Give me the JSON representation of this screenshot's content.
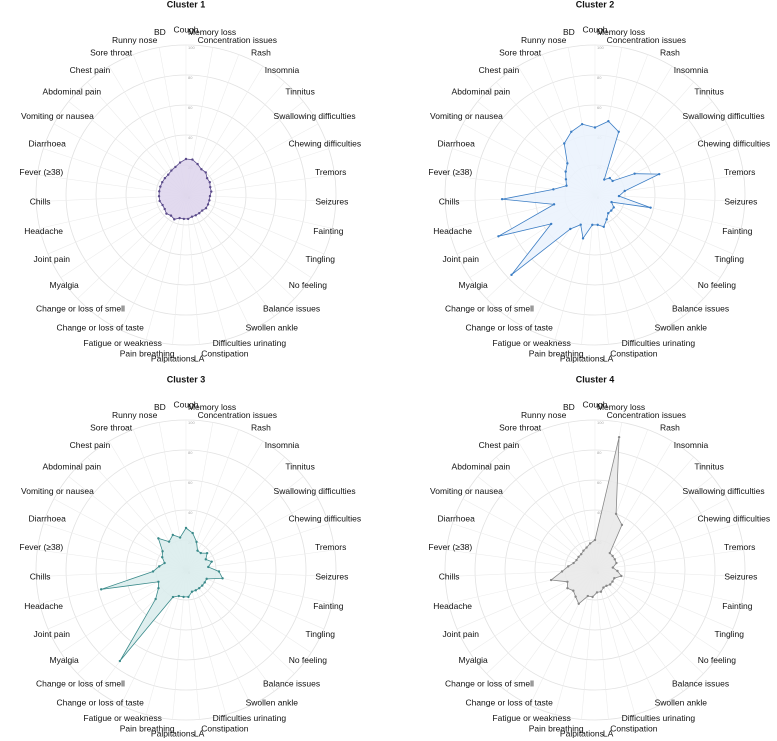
{
  "chart_data": [
    {
      "type": "radar",
      "title": "Cluster 1",
      "categories": [
        "Cough",
        "Memory loss",
        "Concentration issues",
        "Rash",
        "Insomnia",
        "Tinnitus",
        "Swallowing difficulties",
        "Chewing difficulties",
        "Tremors",
        "Seizures",
        "Fainting",
        "Tingling",
        "No feeling",
        "Balance issues",
        "Swollen ankle",
        "Difficulties urinating",
        "Constipation",
        "LA",
        "Palpitations",
        "Pain breathing",
        "Fatigue or weakness",
        "Change or loss of taste",
        "Change or loss of smell",
        "Myalgia",
        "Joint pain",
        "Headache",
        "Chills",
        "Fever (≥38)",
        "Diarrhoea",
        "Vomiting or nausea",
        "Abdominal pain",
        "Chest pain",
        "Sore throat",
        "Runny nose",
        "BD"
      ],
      "values": [
        24,
        24,
        22,
        20,
        20,
        18,
        18,
        17,
        17,
        16,
        16,
        16,
        16,
        15,
        15,
        15,
        15,
        16,
        16,
        16,
        18,
        17,
        18,
        17,
        17,
        18,
        18,
        18,
        18,
        18,
        18,
        18,
        19,
        20,
        22
      ],
      "color": "#5a4a8a",
      "fill": "#ddd3ec",
      "ylim": [
        0,
        100
      ],
      "yticks": [
        0,
        20,
        40,
        60,
        80,
        100
      ],
      "grid": true
    },
    {
      "type": "radar",
      "title": "Cluster 2",
      "categories": [
        "Cough",
        "Memory loss",
        "Concentration issues",
        "Rash",
        "Insomnia",
        "Tinnitus",
        "Swallowing difficulties",
        "Chewing difficulties",
        "Tremors",
        "Seizures",
        "Fainting",
        "Tingling",
        "No feeling",
        "Balance issues",
        "Swollen ankle",
        "Difficulties urinating",
        "Constipation",
        "LA",
        "Palpitations",
        "Pain breathing",
        "Fatigue or weakness",
        "Change or loss of taste",
        "Change or loss of smell",
        "Myalgia",
        "Joint pain",
        "Headache",
        "Chills",
        "Fever (≥38)",
        "Diarrhoea",
        "Vomiting or nausea",
        "Abdominal pain",
        "Chest pain",
        "Sore throat",
        "Runny nose",
        "BD"
      ],
      "values": [
        45,
        50,
        45,
        12,
        15,
        15,
        30,
        45,
        20,
        16,
        38,
        12,
        15,
        15,
        15,
        18,
        22,
        20,
        20,
        30,
        22,
        28,
        77,
        35,
        70,
        28,
        62,
        28,
        20,
        22,
        25,
        28,
        40,
        45,
        48
      ],
      "color": "#3b7dc4",
      "fill": "#eaf2fd",
      "ylim": [
        0,
        100
      ],
      "yticks": [
        0,
        20,
        40,
        60,
        80,
        100
      ],
      "grid": true
    },
    {
      "type": "radar",
      "title": "Cluster 3",
      "categories": [
        "Cough",
        "Memory loss",
        "Concentration issues",
        "Rash",
        "Insomnia",
        "Tinnitus",
        "Swallowing difficulties",
        "Chewing difficulties",
        "Tremors",
        "Seizures",
        "Fainting",
        "Tingling",
        "No feeling",
        "Balance issues",
        "Swollen ankle",
        "Difficulties urinating",
        "Constipation",
        "LA",
        "Palpitations",
        "Pain breathing",
        "Fatigue or weakness",
        "Change or loss of taste",
        "Change or loss of smell",
        "Myalgia",
        "Joint pain",
        "Headache",
        "Chills",
        "Fever (≥38)",
        "Diarrhoea",
        "Vomiting or nausea",
        "Abdominal pain",
        "Chest pain",
        "Sore throat",
        "Runny nose",
        "BD"
      ],
      "values": [
        28,
        25,
        20,
        15,
        15,
        18,
        15,
        18,
        15,
        22,
        25,
        15,
        15,
        15,
        15,
        15,
        15,
        18,
        18,
        18,
        20,
        75,
        28,
        22,
        20,
        58,
        22,
        18,
        15,
        18,
        20,
        28,
        22,
        25,
        22
      ],
      "color": "#3a8a8a",
      "fill": "#d9ecec",
      "ylim": [
        0,
        100
      ],
      "yticks": [
        0,
        20,
        40,
        60,
        80,
        100
      ],
      "grid": true
    },
    {
      "type": "radar",
      "title": "Cluster 4",
      "categories": [
        "Cough",
        "Memory loss",
        "Concentration issues",
        "Rash",
        "Insomnia",
        "Tinnitus",
        "Swallowing difficulties",
        "Chewing difficulties",
        "Tremors",
        "Seizures",
        "Fainting",
        "Tingling",
        "No feeling",
        "Balance issues",
        "Swollen ankle",
        "Difficulties urinating",
        "Constipation",
        "LA",
        "Palpitations",
        "Pain breathing",
        "Fatigue or weakness",
        "Change or loss of taste",
        "Change or loss of smell",
        "Myalgia",
        "Joint pain",
        "Headache",
        "Chills",
        "Fever (≥38)",
        "Diarrhoea",
        "Vomiting or nausea",
        "Abdominal pain",
        "Chest pain",
        "Sore throat",
        "Runny nose",
        "BD"
      ],
      "values": [
        20,
        90,
        40,
        35,
        15,
        15,
        15,
        15,
        12,
        15,
        18,
        14,
        14,
        14,
        13,
        13,
        15,
        15,
        18,
        18,
        25,
        22,
        20,
        22,
        20,
        30,
        22,
        18,
        15,
        14,
        14,
        14,
        15,
        16,
        18
      ],
      "color": "#888888",
      "fill": "#e8e8e8",
      "ylim": [
        0,
        100
      ],
      "yticks": [
        0,
        20,
        40,
        60,
        80,
        100
      ],
      "grid": true
    }
  ]
}
